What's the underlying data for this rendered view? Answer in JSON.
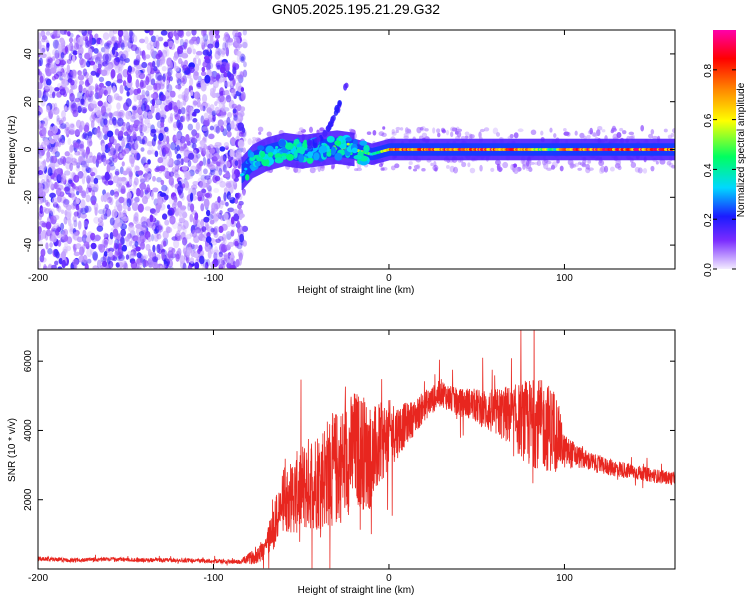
{
  "title": "GN05.2025.195.21.29.G32",
  "chart_data": [
    {
      "type": "heatmap",
      "xlabel": "Height of straight line (km)",
      "ylabel": "Frequency (Hz)",
      "xlim": [
        -200,
        163
      ],
      "ylim": [
        -50,
        50
      ],
      "x_ticks": [
        -200,
        -100,
        0,
        100
      ],
      "y_ticks": [
        -40,
        -20,
        0,
        20,
        40
      ],
      "colorbar": {
        "label": "Normalized spectral amplitude",
        "range": [
          0,
          0.96
        ],
        "ticks": [
          0.0,
          0.2,
          0.4,
          0.6,
          0.8
        ],
        "tick_labels": [
          "0.0",
          "0.2",
          "0.4",
          "0.6",
          "0.8"
        ],
        "colors": [
          "#f3ecff",
          "#7a2cff",
          "#1b1bff",
          "#00d8ff",
          "#00ff60",
          "#ffff00",
          "#ff8800",
          "#ff0000",
          "#ff00aa"
        ]
      },
      "signal_track": [
        {
          "x": -84,
          "freq": -10,
          "amplitude": 0.3
        },
        {
          "x": -78,
          "freq": -5,
          "amplitude": 0.35
        },
        {
          "x": -70,
          "freq": -2,
          "amplitude": 0.3
        },
        {
          "x": -60,
          "freq": 0,
          "amplitude": 0.35
        },
        {
          "x": -50,
          "freq": -1,
          "amplitude": 0.3
        },
        {
          "x": -40,
          "freq": 0,
          "amplitude": 0.3
        },
        {
          "x": -30,
          "freq": 1,
          "amplitude": 0.55
        },
        {
          "x": -20,
          "freq": 0,
          "amplitude": 0.6
        },
        {
          "x": -10,
          "freq": -2,
          "amplitude": 0.45
        },
        {
          "x": 0,
          "freq": 0,
          "amplitude": 0.75
        },
        {
          "x": 20,
          "freq": 0,
          "amplitude": 0.9
        },
        {
          "x": 40,
          "freq": 0,
          "amplitude": 0.9
        },
        {
          "x": 60,
          "freq": 0,
          "amplitude": 0.85
        },
        {
          "x": 80,
          "freq": 0,
          "amplitude": 0.8
        },
        {
          "x": 95,
          "freq": 0,
          "amplitude": 0.45
        },
        {
          "x": 100,
          "freq": 0,
          "amplitude": 0.85
        },
        {
          "x": 130,
          "freq": 0,
          "amplitude": 0.9
        },
        {
          "x": 163,
          "freq": 0,
          "amplitude": 0.85
        }
      ]
    },
    {
      "type": "line",
      "xlabel": "Height of straight line (km)",
      "ylabel": "SNR (10 * v/v)",
      "xlim": [
        -200,
        163
      ],
      "ylim": [
        0,
        6900
      ],
      "x_ticks": [
        -200,
        -100,
        0,
        100
      ],
      "y_ticks": [
        2000,
        4000,
        6000
      ],
      "color": "#e8261f",
      "series": [
        {
          "x": [
            -200,
            -180,
            -160,
            -140,
            -120,
            -100,
            -85,
            -75,
            -70,
            -65,
            -60,
            -55,
            -50,
            -45,
            -40,
            -35,
            -30,
            -25,
            -20,
            -15,
            -10,
            -5,
            0,
            5,
            10,
            15,
            20,
            25,
            30,
            35,
            40,
            45,
            50,
            55,
            60,
            65,
            70,
            75,
            80,
            85,
            90,
            95,
            100,
            105,
            110,
            120,
            130,
            140,
            150,
            163
          ],
          "y": [
            300,
            250,
            280,
            260,
            250,
            230,
            200,
            400,
            700,
            1300,
            2000,
            2100,
            2300,
            2500,
            2600,
            2800,
            2900,
            3100,
            3500,
            3400,
            3200,
            3600,
            3900,
            4000,
            4200,
            4400,
            4700,
            4900,
            5100,
            4900,
            4800,
            4800,
            4700,
            4600,
            4500,
            4500,
            4400,
            4300,
            4200,
            4200,
            4100,
            4000,
            3400,
            3300,
            3200,
            3000,
            2900,
            2800,
            2700,
            2600
          ],
          "noise": [
            60,
            60,
            60,
            60,
            60,
            60,
            60,
            250,
            400,
            700,
            900,
            1100,
            1300,
            1400,
            1500,
            1600,
            1700,
            1700,
            1700,
            1700,
            1500,
            1200,
            1000,
            800,
            600,
            500,
            450,
            400,
            400,
            400,
            400,
            450,
            500,
            600,
            700,
            800,
            900,
            1100,
            1300,
            1300,
            1300,
            1200,
            500,
            400,
            300,
            250,
            250,
            220,
            200,
            200
          ]
        }
      ]
    }
  ]
}
